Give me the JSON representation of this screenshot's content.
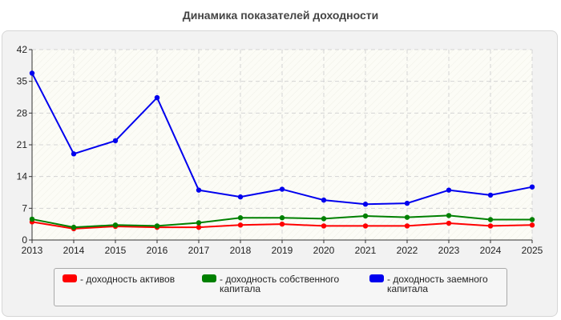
{
  "chart_data": {
    "type": "line",
    "title": "Динамика показателей доходности",
    "xlabel": "",
    "ylabel": "",
    "x": [
      "2013",
      "2014",
      "2015",
      "2016",
      "2017",
      "2018",
      "2019",
      "2020",
      "2021",
      "2022",
      "2023",
      "2024",
      "2025"
    ],
    "ylim": [
      0,
      42
    ],
    "yticks": [
      0,
      7,
      14,
      21,
      28,
      35,
      42
    ],
    "grid": true,
    "legend_position": "bottom",
    "series": [
      {
        "name": "- доходность активов",
        "color": "#ff0000",
        "values": [
          4.0,
          2.5,
          3.0,
          2.8,
          2.8,
          3.3,
          3.5,
          3.1,
          3.1,
          3.1,
          3.7,
          3.1,
          3.3
        ]
      },
      {
        "name": "- доходность собственного капитала",
        "color": "#008000",
        "values": [
          4.6,
          2.8,
          3.3,
          3.1,
          3.8,
          4.9,
          4.9,
          4.7,
          5.3,
          5.0,
          5.4,
          4.5,
          4.5
        ]
      },
      {
        "name": "- доходность заемного капитала",
        "color": "#0000ee",
        "values": [
          36.8,
          19.0,
          21.9,
          31.4,
          11.0,
          9.5,
          11.2,
          8.8,
          7.9,
          8.1,
          11.0,
          9.9,
          11.7
        ]
      }
    ]
  }
}
